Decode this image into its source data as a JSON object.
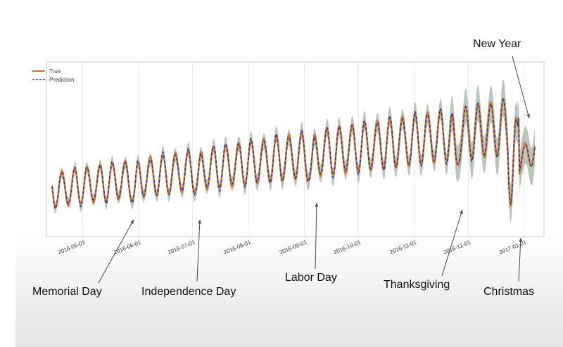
{
  "chart_data": {
    "type": "line",
    "x_range": [
      "2016-04-14",
      "2017-01-07"
    ],
    "tick_labels": [
      "2016-05-01",
      "2016-06-01",
      "2016-07-01",
      "2016-08-01",
      "2016-09-01",
      "2016-10-01",
      "2016-11-01",
      "2016-12-01",
      "2017-01-01"
    ],
    "legend": {
      "placement": "top-left",
      "entries": [
        "True",
        "Prediction"
      ]
    },
    "grid": true,
    "series": [
      {
        "name": "True",
        "color": "#d8742a",
        "style": "solid"
      },
      {
        "name": "Prediction",
        "color": "#2a3c8f",
        "style": "dashed"
      }
    ],
    "band_color": "#a7b8a7",
    "annotations": [
      {
        "text": "Memorial Day",
        "date": "2016-05-30"
      },
      {
        "text": "Independence Day",
        "date": "2016-07-04"
      },
      {
        "text": "Labor Day",
        "date": "2016-09-05"
      },
      {
        "text": "Thanksgiving",
        "date": "2016-11-24"
      },
      {
        "text": "Christmas",
        "date": "2016-12-25"
      },
      {
        "text": "New Year",
        "date": "2017-01-01"
      }
    ]
  }
}
